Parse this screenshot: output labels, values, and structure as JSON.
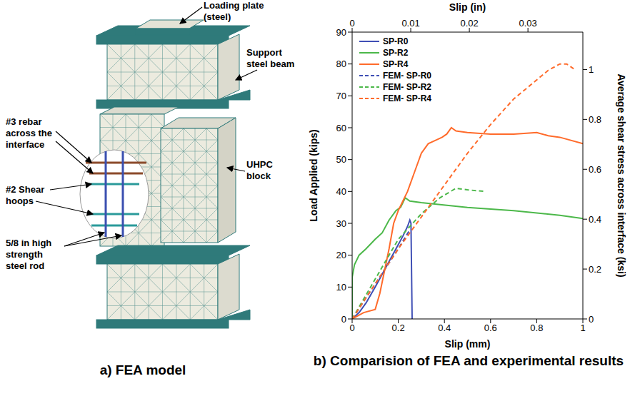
{
  "panel_a": {
    "caption": "a) FEA model",
    "labels": [
      "Loading plate (steel)",
      "Support steel beam",
      "#3 rebar across the interface",
      "UHPC block",
      "#2 Shear hoops",
      "5/8 in high strength steel rod"
    ]
  },
  "chart_data": {
    "type": "line",
    "title": "b) Comparision of FEA and experimental results",
    "xlabel": "Slip (mm)",
    "x2label": "Slip (in)",
    "ylabel": "Load Applied (kips)",
    "y2label": "Average shear stress across interface (ksi)",
    "xlim": [
      0,
      1
    ],
    "xticks": [
      0,
      0.2,
      0.4,
      0.6,
      0.8,
      1
    ],
    "x2lim": [
      0,
      0.03937
    ],
    "x2ticks": [
      0,
      0.01,
      0.02,
      0.03
    ],
    "ylim": [
      0,
      90
    ],
    "yticks": [
      0,
      10,
      20,
      30,
      40,
      50,
      60,
      70,
      80,
      90
    ],
    "y2lim": [
      0,
      1.15
    ],
    "y2ticks": [
      0,
      0.2,
      0.4,
      0.6,
      0.8,
      1
    ],
    "grid": false,
    "legend": "upper left",
    "series": [
      {
        "name": "SP-R0",
        "color": "#3f4fb5",
        "line_style": "solid",
        "x": [
          0,
          0.03,
          0.06,
          0.1,
          0.13,
          0.16,
          0.19,
          0.22,
          0.24,
          0.25,
          0.255,
          0.26
        ],
        "values": [
          0,
          2,
          5,
          10,
          14,
          18,
          22,
          26,
          29,
          31,
          30,
          0
        ]
      },
      {
        "name": "SP-R2",
        "color": "#4cb84a",
        "line_style": "solid",
        "x": [
          0,
          0,
          0.01,
          0.03,
          0.06,
          0.1,
          0.13,
          0.16,
          0.19,
          0.21,
          0.23,
          0.25,
          0.3,
          0.5,
          0.7,
          0.9,
          1
        ],
        "values": [
          0,
          13,
          17,
          20,
          22,
          25,
          27,
          31,
          34,
          35,
          38,
          37,
          36.5,
          35,
          34,
          32.5,
          31.5
        ]
      },
      {
        "name": "SP-R4",
        "color": "#ff6b2b",
        "line_style": "solid",
        "x": [
          0,
          0.05,
          0.1,
          0.12,
          0.14,
          0.16,
          0.18,
          0.2,
          0.22,
          0.24,
          0.27,
          0.3,
          0.33,
          0.36,
          0.39,
          0.41,
          0.43,
          0.45,
          0.5,
          0.6,
          0.7,
          0.8,
          0.85,
          0.9,
          1
        ],
        "values": [
          0,
          2,
          3,
          8,
          15,
          22,
          30,
          34,
          37,
          40,
          46,
          52,
          55,
          56,
          57,
          58,
          60,
          59,
          58.5,
          58,
          58,
          58.5,
          57.5,
          57,
          55
        ]
      },
      {
        "name": "FEM- SP-R0",
        "color": "#3f4fb5",
        "line_style": "dashed",
        "x": [
          0,
          0.1,
          0.2,
          0.25
        ],
        "values": [
          0,
          11,
          22,
          28
        ]
      },
      {
        "name": "FEM- SP-R2",
        "color": "#4cb84a",
        "line_style": "dashed",
        "x": [
          0,
          0.2,
          0.3,
          0.38,
          0.45,
          0.5,
          0.58
        ],
        "values": [
          0,
          25,
          33,
          38,
          41,
          40.5,
          40
        ]
      },
      {
        "name": "FEM- SP-R4",
        "color": "#ff6b2b",
        "line_style": "dashed",
        "x": [
          0,
          0.1,
          0.2,
          0.3,
          0.4,
          0.5,
          0.6,
          0.7,
          0.8,
          0.85,
          0.9,
          0.93,
          0.96
        ],
        "values": [
          0,
          11,
          22,
          32,
          42,
          52,
          61,
          69,
          75,
          78,
          80,
          80,
          78.5
        ]
      }
    ]
  }
}
